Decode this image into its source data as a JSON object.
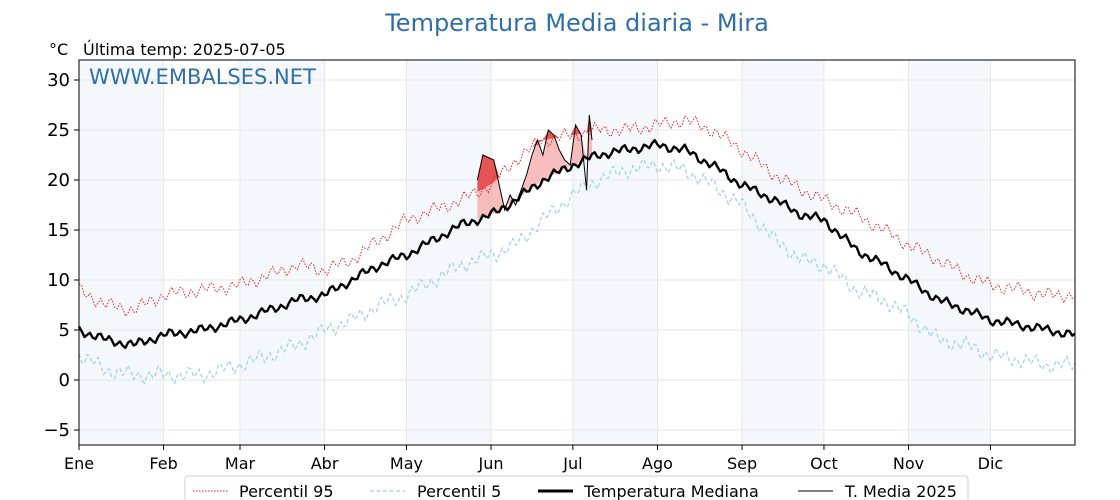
{
  "chart_data": {
    "type": "line",
    "title": "Temperatura Media diaria - Mira",
    "unit_label": "°C",
    "last_temp_label": "Última temp: 2025-07-05",
    "watermark": "WWW.EMBALSES.NET",
    "x_axis": {
      "months": [
        "Ene",
        "Feb",
        "Mar",
        "Abr",
        "May",
        "Jun",
        "Jul",
        "Ago",
        "Sep",
        "Oct",
        "Nov",
        "Dic"
      ],
      "month_start_days": [
        0,
        31,
        59,
        90,
        120,
        151,
        181,
        212,
        243,
        273,
        304,
        334
      ],
      "range_days": [
        0,
        365
      ]
    },
    "y_axis": {
      "range": [
        -6.5,
        32
      ],
      "ticks": [
        -5,
        0,
        5,
        10,
        15,
        20,
        25,
        30
      ]
    },
    "grid": true,
    "legend_position": "bottom-center",
    "series": [
      {
        "key": "p95",
        "name": "Percentil 95",
        "color": "#e8201f",
        "style": "dotted",
        "points": [
          [
            0,
            9.0
          ],
          [
            10,
            7.5
          ],
          [
            20,
            7.0
          ],
          [
            31,
            8.5
          ],
          [
            45,
            9.0
          ],
          [
            59,
            9.5
          ],
          [
            70,
            10.5
          ],
          [
            80,
            11.5
          ],
          [
            90,
            11.0
          ],
          [
            100,
            12.0
          ],
          [
            110,
            14.0
          ],
          [
            120,
            16.0
          ],
          [
            130,
            17.0
          ],
          [
            140,
            18.0
          ],
          [
            151,
            19.5
          ],
          [
            160,
            22.0
          ],
          [
            170,
            24.0
          ],
          [
            181,
            24.5
          ],
          [
            190,
            25.0
          ],
          [
            200,
            25.0
          ],
          [
            212,
            25.5
          ],
          [
            222,
            26.0
          ],
          [
            232,
            25.0
          ],
          [
            243,
            23.0
          ],
          [
            255,
            20.5
          ],
          [
            265,
            19.0
          ],
          [
            273,
            18.0
          ],
          [
            285,
            16.5
          ],
          [
            295,
            15.0
          ],
          [
            304,
            13.5
          ],
          [
            315,
            12.0
          ],
          [
            325,
            10.5
          ],
          [
            334,
            9.5
          ],
          [
            345,
            9.0
          ],
          [
            355,
            8.5
          ],
          [
            365,
            8.5
          ]
        ]
      },
      {
        "key": "p5",
        "name": "Percentil 5",
        "color": "#9cd0e6",
        "style": "dashed",
        "points": [
          [
            0,
            2.5
          ],
          [
            10,
            1.0
          ],
          [
            20,
            0.5
          ],
          [
            31,
            0.5
          ],
          [
            45,
            0.5
          ],
          [
            59,
            1.5
          ],
          [
            70,
            2.5
          ],
          [
            80,
            3.5
          ],
          [
            90,
            5.0
          ],
          [
            100,
            6.0
          ],
          [
            110,
            7.5
          ],
          [
            120,
            8.5
          ],
          [
            130,
            10.0
          ],
          [
            140,
            11.5
          ],
          [
            151,
            12.5
          ],
          [
            160,
            13.5
          ],
          [
            170,
            16.0
          ],
          [
            181,
            18.5
          ],
          [
            190,
            20.0
          ],
          [
            200,
            21.0
          ],
          [
            212,
            21.5
          ],
          [
            222,
            21.0
          ],
          [
            232,
            19.5
          ],
          [
            243,
            17.5
          ],
          [
            255,
            14.0
          ],
          [
            265,
            12.0
          ],
          [
            273,
            11.5
          ],
          [
            285,
            9.0
          ],
          [
            295,
            8.0
          ],
          [
            304,
            6.5
          ],
          [
            315,
            4.0
          ],
          [
            325,
            3.5
          ],
          [
            334,
            2.5
          ],
          [
            345,
            2.0
          ],
          [
            355,
            1.5
          ],
          [
            365,
            1.5
          ]
        ]
      },
      {
        "key": "median",
        "name": "Temperatura Mediana",
        "color": "#000000",
        "style": "solid-thick",
        "points": [
          [
            0,
            5.0
          ],
          [
            10,
            4.0
          ],
          [
            20,
            3.5
          ],
          [
            31,
            4.5
          ],
          [
            45,
            5.0
          ],
          [
            59,
            6.0
          ],
          [
            70,
            7.0
          ],
          [
            80,
            8.0
          ],
          [
            90,
            8.5
          ],
          [
            100,
            10.0
          ],
          [
            110,
            11.5
          ],
          [
            120,
            12.5
          ],
          [
            130,
            14.0
          ],
          [
            140,
            15.5
          ],
          [
            151,
            16.5
          ],
          [
            160,
            18.0
          ],
          [
            170,
            20.0
          ],
          [
            181,
            21.5
          ],
          [
            190,
            22.5
          ],
          [
            200,
            23.0
          ],
          [
            212,
            23.5
          ],
          [
            222,
            23.0
          ],
          [
            232,
            21.5
          ],
          [
            243,
            19.5
          ],
          [
            255,
            18.0
          ],
          [
            265,
            16.5
          ],
          [
            273,
            16.0
          ],
          [
            285,
            13.0
          ],
          [
            295,
            11.5
          ],
          [
            304,
            10.0
          ],
          [
            315,
            8.0
          ],
          [
            325,
            7.0
          ],
          [
            334,
            6.0
          ],
          [
            345,
            5.5
          ],
          [
            355,
            5.0
          ],
          [
            365,
            4.5
          ]
        ]
      },
      {
        "key": "t2025",
        "name": "T. Media 2025",
        "color": "#000000",
        "style": "solid-thin",
        "points": [
          [
            146,
            20.0
          ],
          [
            148,
            22.5
          ],
          [
            152,
            22.0
          ],
          [
            154,
            19.5
          ],
          [
            156,
            17.0
          ],
          [
            158,
            18.5
          ],
          [
            160,
            17.5
          ],
          [
            162,
            19.0
          ],
          [
            164,
            20.5
          ],
          [
            166,
            22.5
          ],
          [
            168,
            24.0
          ],
          [
            170,
            22.5
          ],
          [
            172,
            25.0
          ],
          [
            174,
            24.5
          ],
          [
            176,
            23.0
          ],
          [
            178,
            22.0
          ],
          [
            180,
            21.5
          ],
          [
            182,
            25.5
          ],
          [
            184,
            24.5
          ],
          [
            186,
            19.0
          ],
          [
            187,
            26.5
          ],
          [
            188,
            24.0
          ]
        ]
      }
    ]
  }
}
